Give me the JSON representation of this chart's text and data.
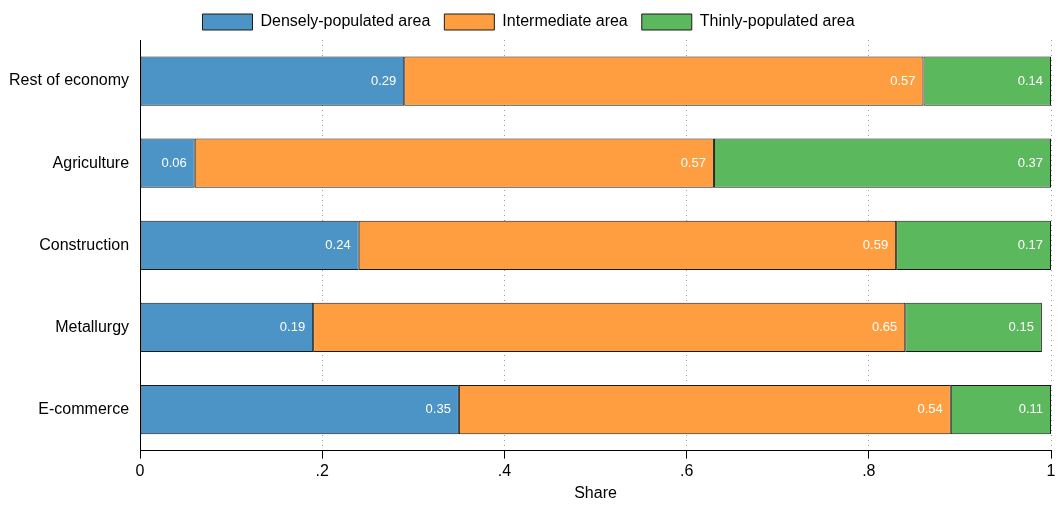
{
  "chart_data": {
    "type": "bar",
    "orientation": "horizontal",
    "stacked": true,
    "xlabel": "Share",
    "categories": [
      "Rest of economy",
      "Agriculture",
      "Construction",
      "Metallurgy",
      "E-commerce"
    ],
    "series": [
      {
        "name": "Densely-populated area",
        "color": "#4c93c6",
        "values": [
          0.29,
          0.06,
          0.24,
          0.19,
          0.35
        ]
      },
      {
        "name": "Intermediate area",
        "color": "#ff9e40",
        "values": [
          0.57,
          0.57,
          0.59,
          0.65,
          0.54
        ]
      },
      {
        "name": "Thinly-populated area",
        "color": "#5cb85c",
        "values": [
          0.14,
          0.37,
          0.17,
          0.15,
          0.11
        ]
      }
    ],
    "xlim": [
      0,
      1
    ],
    "xticks": [
      0,
      {
        "value": 0.2,
        "label": ".2"
      },
      {
        "value": 0.4,
        "label": ".4"
      },
      {
        "value": 0.6,
        "label": ".6"
      },
      {
        "value": 0.8,
        "label": ".8"
      },
      1
    ],
    "grid": "x",
    "legend": "top",
    "data_labels": true
  }
}
